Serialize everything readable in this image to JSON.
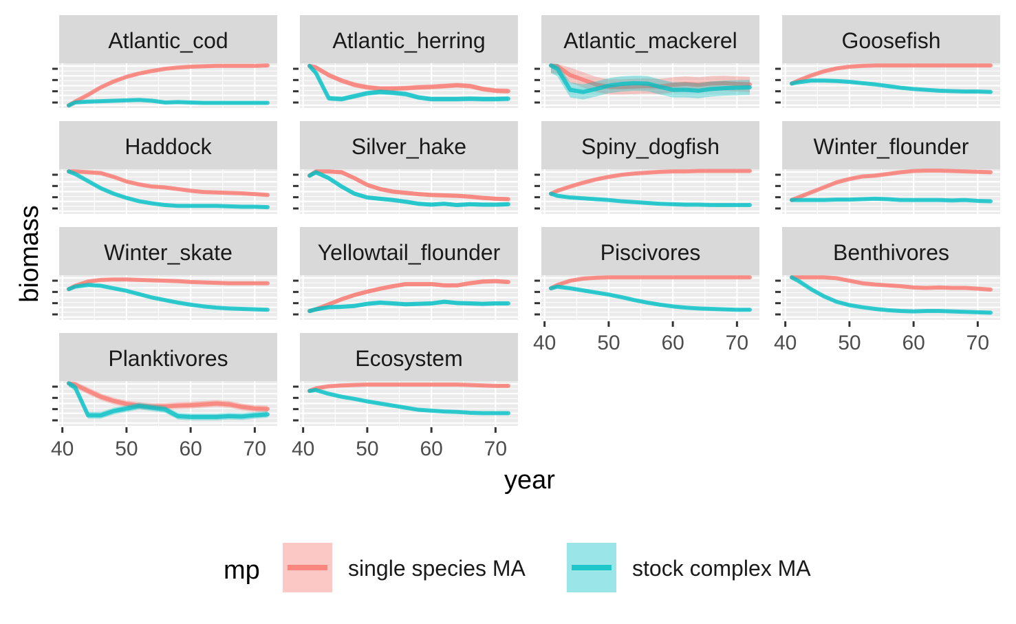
{
  "chart_data": {
    "type": "line",
    "xlabel": "year",
    "ylabel": "biomass",
    "x_ticks": [
      40,
      50,
      60,
      70
    ],
    "x_range": [
      41,
      72
    ],
    "grid": "on",
    "y_tick_labels": "none",
    "legend": {
      "title": "mp",
      "position": "bottom",
      "entries": [
        {
          "name": "single species MA",
          "color": "#F8766D"
        },
        {
          "name": "stock complex MA",
          "color": "#00BFC4"
        }
      ]
    },
    "x": [
      41,
      42,
      44,
      46,
      48,
      50,
      52,
      54,
      56,
      58,
      60,
      62,
      64,
      66,
      68,
      70,
      72
    ],
    "panels": [
      {
        "title": "Atlantic_cod",
        "series": [
          {
            "name": "single species MA",
            "values": [
              0.03,
              0.12,
              0.28,
              0.46,
              0.6,
              0.71,
              0.79,
              0.85,
              0.9,
              0.93,
              0.95,
              0.96,
              0.97,
              0.97,
              0.97,
              0.97,
              0.98
            ]
          },
          {
            "name": "stock complex MA",
            "values": [
              0.03,
              0.1,
              0.12,
              0.13,
              0.14,
              0.15,
              0.16,
              0.14,
              0.1,
              0.11,
              0.1,
              0.09,
              0.09,
              0.09,
              0.09,
              0.09,
              0.09
            ]
          }
        ],
        "band_width": 0.03
      },
      {
        "title": "Atlantic_herring",
        "series": [
          {
            "name": "single species MA",
            "values": [
              0.97,
              0.93,
              0.75,
              0.62,
              0.52,
              0.46,
              0.43,
              0.43,
              0.44,
              0.46,
              0.47,
              0.49,
              0.51,
              0.49,
              0.42,
              0.38,
              0.37
            ]
          },
          {
            "name": "stock complex MA",
            "values": [
              0.97,
              0.8,
              0.2,
              0.18,
              0.25,
              0.32,
              0.35,
              0.33,
              0.3,
              0.22,
              0.18,
              0.18,
              0.18,
              0.19,
              0.18,
              0.18,
              0.19
            ]
          }
        ],
        "band_width": 0.06
      },
      {
        "title": "Atlantic_mackerel",
        "series": [
          {
            "name": "single species MA",
            "values": [
              0.98,
              0.96,
              0.75,
              0.64,
              0.53,
              0.47,
              0.47,
              0.48,
              0.49,
              0.48,
              0.52,
              0.54,
              0.52,
              0.55,
              0.56,
              0.54,
              0.53
            ]
          },
          {
            "name": "stock complex MA",
            "values": [
              0.98,
              0.9,
              0.4,
              0.35,
              0.42,
              0.5,
              0.54,
              0.56,
              0.55,
              0.47,
              0.4,
              0.4,
              0.38,
              0.42,
              0.44,
              0.45,
              0.46
            ]
          }
        ],
        "band_width": 0.18
      },
      {
        "title": "Goosefish",
        "series": [
          {
            "name": "single species MA",
            "values": [
              0.55,
              0.62,
              0.74,
              0.84,
              0.91,
              0.95,
              0.97,
              0.98,
              0.98,
              0.98,
              0.98,
              0.98,
              0.98,
              0.98,
              0.98,
              0.98,
              0.98
            ]
          },
          {
            "name": "stock complex MA",
            "values": [
              0.55,
              0.58,
              0.62,
              0.62,
              0.61,
              0.59,
              0.56,
              0.53,
              0.49,
              0.45,
              0.42,
              0.4,
              0.38,
              0.37,
              0.36,
              0.36,
              0.35
            ]
          }
        ],
        "band_width": 0.03
      },
      {
        "title": "Haddock",
        "series": [
          {
            "name": "single species MA",
            "values": [
              0.98,
              0.98,
              0.96,
              0.94,
              0.85,
              0.74,
              0.67,
              0.62,
              0.6,
              0.56,
              0.52,
              0.49,
              0.48,
              0.47,
              0.46,
              0.44,
              0.42
            ]
          },
          {
            "name": "stock complex MA",
            "values": [
              0.98,
              0.92,
              0.75,
              0.58,
              0.45,
              0.35,
              0.27,
              0.22,
              0.18,
              0.16,
              0.16,
              0.16,
              0.16,
              0.15,
              0.14,
              0.14,
              0.13
            ]
          }
        ],
        "band_width": 0.03
      },
      {
        "title": "Silver_hake",
        "series": [
          {
            "name": "single species MA",
            "values": [
              0.88,
              0.98,
              0.98,
              0.96,
              0.82,
              0.66,
              0.56,
              0.5,
              0.47,
              0.44,
              0.42,
              0.41,
              0.4,
              0.38,
              0.35,
              0.33,
              0.32
            ]
          },
          {
            "name": "stock complex MA",
            "values": [
              0.88,
              0.96,
              0.82,
              0.62,
              0.45,
              0.36,
              0.33,
              0.3,
              0.26,
              0.21,
              0.19,
              0.21,
              0.18,
              0.2,
              0.19,
              0.19,
              0.2
            ]
          }
        ],
        "band_width": 0.05
      },
      {
        "title": "Spiny_dogfish",
        "series": [
          {
            "name": "single species MA",
            "values": [
              0.45,
              0.52,
              0.62,
              0.71,
              0.79,
              0.85,
              0.9,
              0.93,
              0.95,
              0.97,
              0.98,
              0.98,
              0.99,
              0.99,
              0.99,
              0.99,
              0.99
            ]
          },
          {
            "name": "stock complex MA",
            "values": [
              0.45,
              0.4,
              0.36,
              0.34,
              0.32,
              0.3,
              0.27,
              0.25,
              0.23,
              0.21,
              0.2,
              0.19,
              0.19,
              0.18,
              0.18,
              0.18,
              0.18
            ]
          }
        ],
        "band_width": 0.03
      },
      {
        "title": "Winter_flounder",
        "series": [
          {
            "name": "single species MA",
            "values": [
              0.3,
              0.36,
              0.48,
              0.6,
              0.72,
              0.8,
              0.86,
              0.88,
              0.92,
              0.96,
              0.99,
              1.0,
              1.0,
              0.99,
              0.98,
              0.97,
              0.96
            ]
          },
          {
            "name": "stock complex MA",
            "values": [
              0.3,
              0.3,
              0.3,
              0.3,
              0.31,
              0.31,
              0.32,
              0.33,
              0.32,
              0.3,
              0.3,
              0.3,
              0.3,
              0.29,
              0.3,
              0.28,
              0.27
            ]
          }
        ],
        "band_width": 0.03
      },
      {
        "title": "Winter_skate",
        "series": [
          {
            "name": "single species MA",
            "values": [
              0.7,
              0.78,
              0.88,
              0.92,
              0.93,
              0.93,
              0.92,
              0.91,
              0.9,
              0.89,
              0.87,
              0.86,
              0.85,
              0.84,
              0.84,
              0.84,
              0.84
            ]
          },
          {
            "name": "stock complex MA",
            "values": [
              0.7,
              0.76,
              0.8,
              0.78,
              0.72,
              0.66,
              0.58,
              0.5,
              0.44,
              0.38,
              0.33,
              0.29,
              0.26,
              0.24,
              0.23,
              0.22,
              0.21
            ]
          }
        ],
        "band_width": 0.03
      },
      {
        "title": "Yellowtail_flounder",
        "series": [
          {
            "name": "single species MA",
            "values": [
              0.18,
              0.22,
              0.34,
              0.46,
              0.56,
              0.64,
              0.71,
              0.77,
              0.82,
              0.82,
              0.82,
              0.79,
              0.79,
              0.84,
              0.88,
              0.89,
              0.87
            ]
          },
          {
            "name": "stock complex MA",
            "values": [
              0.18,
              0.22,
              0.27,
              0.28,
              0.3,
              0.35,
              0.38,
              0.36,
              0.34,
              0.35,
              0.36,
              0.4,
              0.37,
              0.36,
              0.35,
              0.36,
              0.36
            ]
          }
        ],
        "band_width": 0.05
      },
      {
        "title": "Piscivores",
        "series": [
          {
            "name": "single species MA",
            "values": [
              0.72,
              0.8,
              0.9,
              0.95,
              0.97,
              0.98,
              0.98,
              0.98,
              0.98,
              0.98,
              0.98,
              0.98,
              0.98,
              0.98,
              0.98,
              0.98,
              0.98
            ]
          },
          {
            "name": "stock complex MA",
            "values": [
              0.72,
              0.76,
              0.72,
              0.67,
              0.62,
              0.57,
              0.51,
              0.44,
              0.38,
              0.33,
              0.29,
              0.26,
              0.24,
              0.23,
              0.22,
              0.21,
              0.21
            ]
          }
        ],
        "band_width": 0.03
      },
      {
        "title": "Benthivores",
        "series": [
          {
            "name": "single species MA",
            "values": [
              0.98,
              0.98,
              0.98,
              0.98,
              0.96,
              0.9,
              0.84,
              0.81,
              0.79,
              0.77,
              0.74,
              0.73,
              0.74,
              0.73,
              0.73,
              0.71,
              0.69
            ]
          },
          {
            "name": "stock complex MA",
            "values": [
              0.98,
              0.9,
              0.7,
              0.53,
              0.4,
              0.32,
              0.27,
              0.23,
              0.2,
              0.18,
              0.17,
              0.18,
              0.18,
              0.17,
              0.16,
              0.15,
              0.14
            ]
          }
        ],
        "band_width": 0.03
      },
      {
        "title": "Planktivores",
        "series": [
          {
            "name": "single species MA",
            "values": [
              0.98,
              0.95,
              0.8,
              0.66,
              0.56,
              0.49,
              0.45,
              0.43,
              0.43,
              0.45,
              0.46,
              0.48,
              0.5,
              0.48,
              0.42,
              0.38,
              0.37
            ]
          },
          {
            "name": "stock complex MA",
            "values": [
              0.98,
              0.88,
              0.22,
              0.22,
              0.32,
              0.38,
              0.44,
              0.4,
              0.36,
              0.2,
              0.18,
              0.18,
              0.18,
              0.2,
              0.19,
              0.22,
              0.24
            ]
          }
        ],
        "band_width": 0.08
      },
      {
        "title": "Ecosystem",
        "series": [
          {
            "name": "single species MA",
            "values": [
              0.8,
              0.86,
              0.91,
              0.93,
              0.94,
              0.95,
              0.95,
              0.95,
              0.95,
              0.95,
              0.95,
              0.95,
              0.95,
              0.94,
              0.93,
              0.92,
              0.92
            ]
          },
          {
            "name": "stock complex MA",
            "values": [
              0.8,
              0.82,
              0.73,
              0.66,
              0.61,
              0.55,
              0.5,
              0.45,
              0.4,
              0.35,
              0.33,
              0.31,
              0.3,
              0.28,
              0.27,
              0.27,
              0.27
            ]
          }
        ],
        "band_width": 0.03
      }
    ]
  }
}
